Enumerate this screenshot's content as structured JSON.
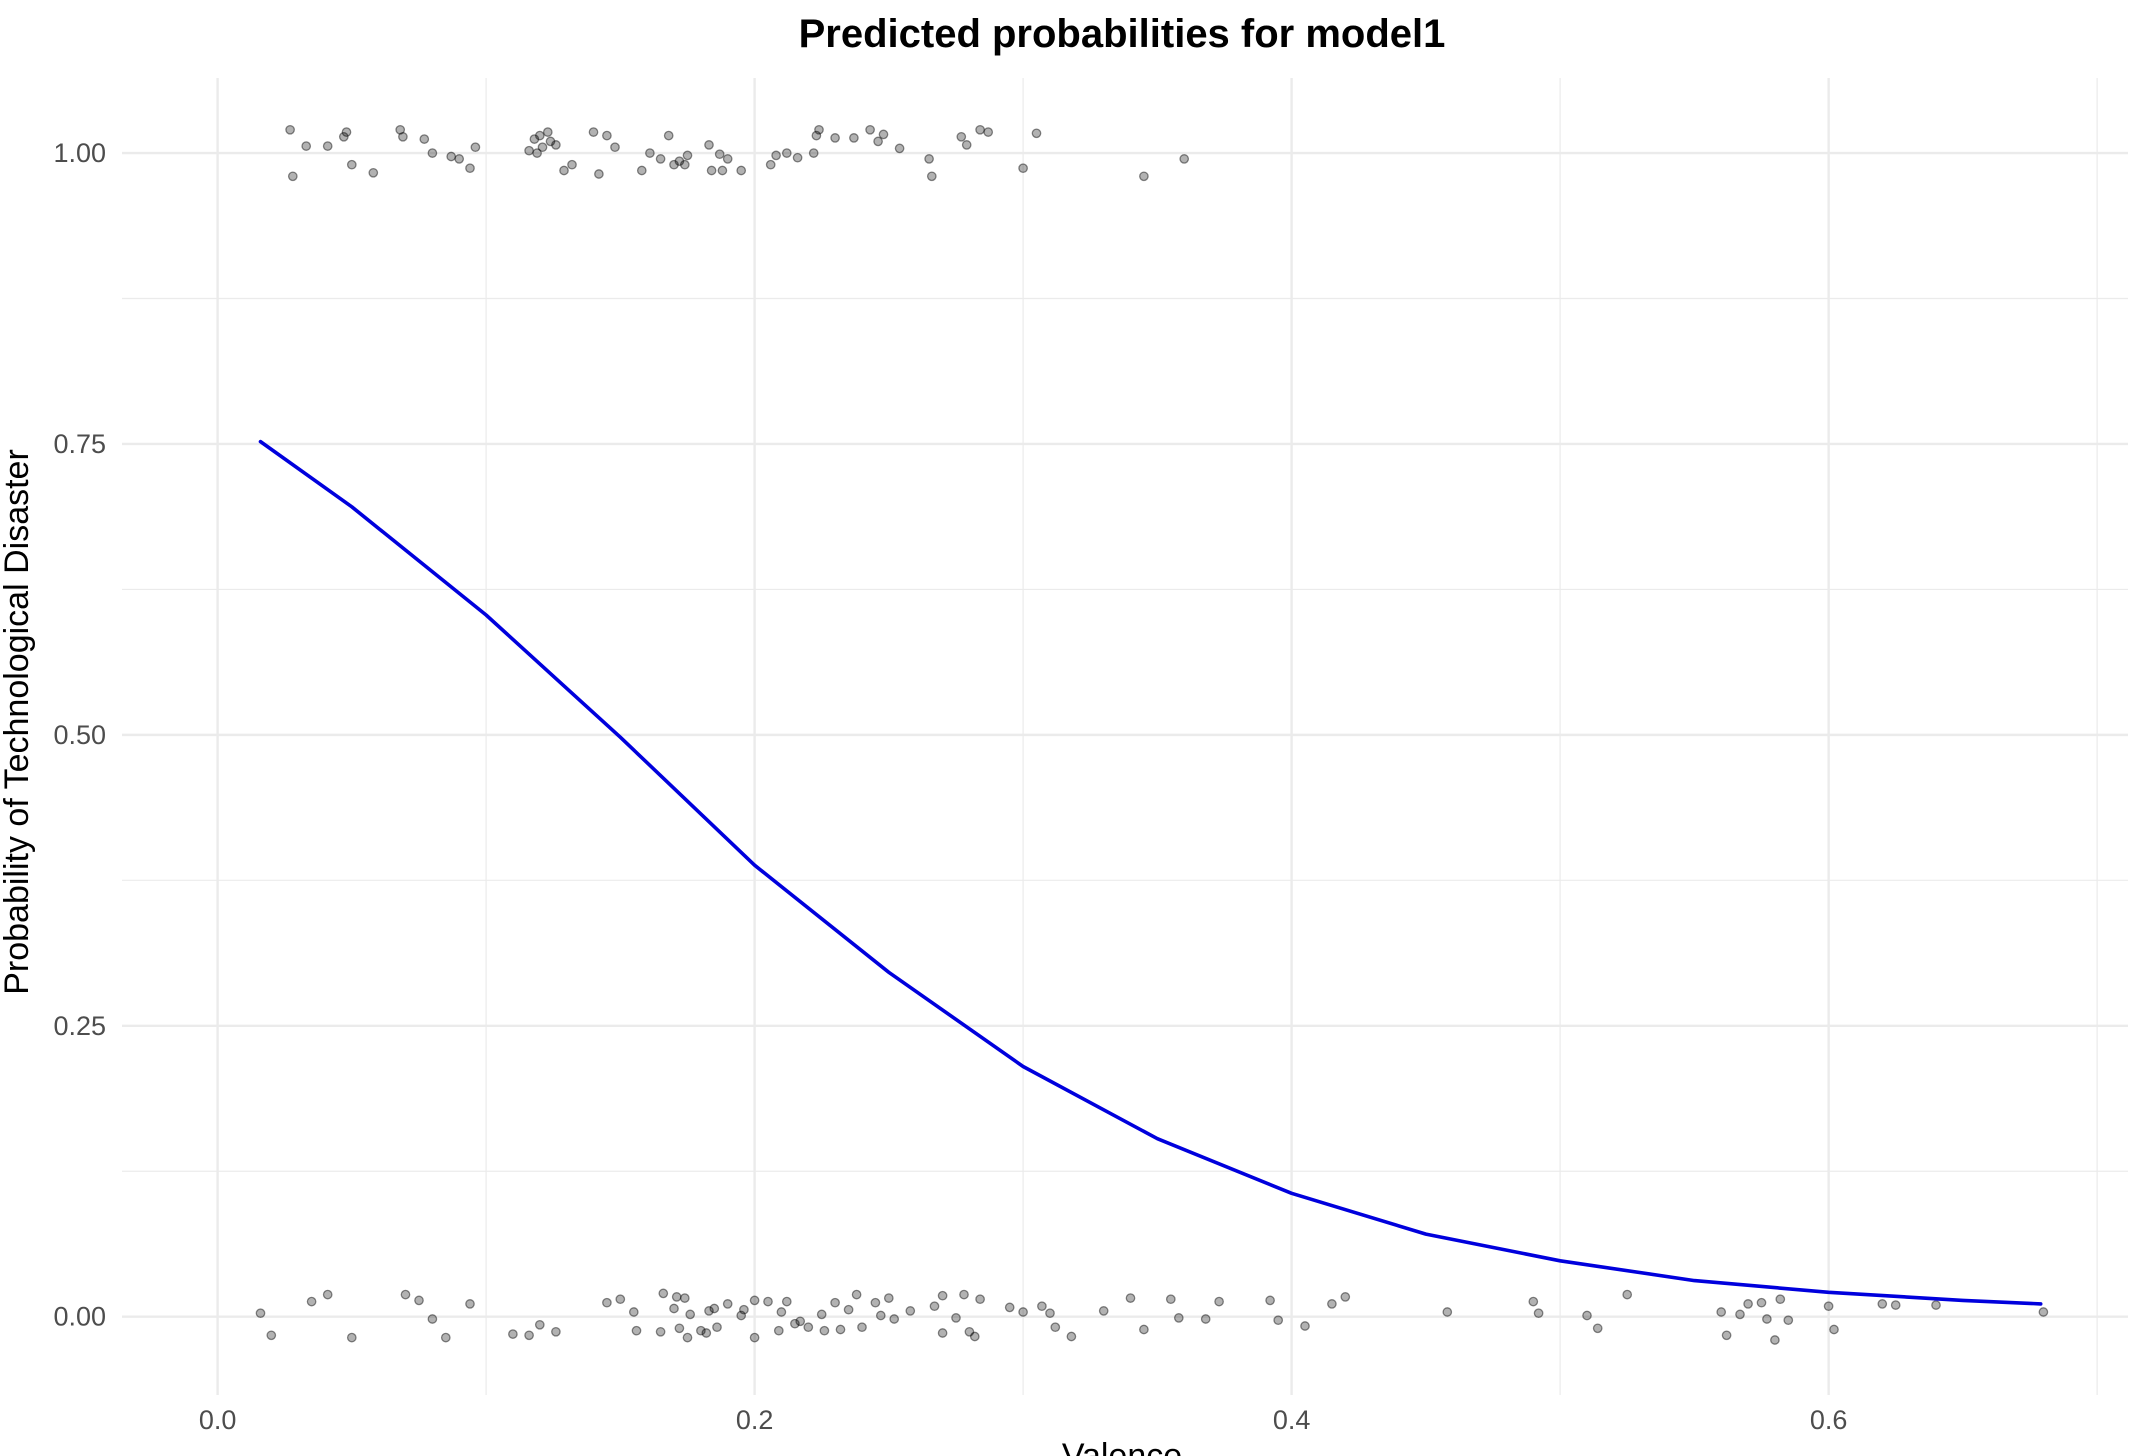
{
  "chart_data": {
    "type": "scatter",
    "title": "Predicted probabilities for model1",
    "xlabel": "Valence",
    "ylabel": "Probability of Technological Disaster",
    "xlim": [
      -0.0356,
      0.7115
    ],
    "ylim": [
      -0.0673,
      1.0645
    ],
    "x_ticks": [
      0.0,
      0.2,
      0.4,
      0.6
    ],
    "x_tick_labels": [
      "0.0",
      "0.2",
      "0.4",
      "0.6"
    ],
    "y_ticks": [
      0.0,
      0.25,
      0.5,
      0.75,
      1.0
    ],
    "y_tick_labels": [
      "0.00",
      "0.25",
      "0.50",
      "0.75",
      "1.00"
    ],
    "x_minor": [
      0.1,
      0.3,
      0.5,
      0.7
    ],
    "y_minor": [
      0.125,
      0.375,
      0.625,
      0.875
    ],
    "grid": true,
    "legend": "none",
    "colors": {
      "curve": "#0000dd",
      "points": "#000000",
      "grid": "#ebebeb"
    },
    "series": [
      {
        "type": "line",
        "x": [
          0.016,
          0.05,
          0.1,
          0.15,
          0.2,
          0.25,
          0.3,
          0.35,
          0.4,
          0.45,
          0.5,
          0.55,
          0.6,
          0.65,
          0.679
        ],
        "y": [
          0.752,
          0.696,
          0.603,
          0.498,
          0.388,
          0.296,
          0.215,
          0.153,
          0.106,
          0.071,
          0.048,
          0.031,
          0.021,
          0.014,
          0.011
        ]
      },
      {
        "type": "scatter",
        "x": [
          0.027,
          0.028,
          0.033,
          0.041,
          0.047,
          0.048,
          0.05,
          0.058,
          0.068,
          0.069,
          0.077,
          0.08,
          0.087,
          0.09,
          0.094,
          0.096,
          0.116,
          0.118,
          0.119,
          0.12,
          0.121,
          0.123,
          0.124,
          0.126,
          0.129,
          0.132,
          0.14,
          0.142,
          0.145,
          0.148,
          0.158,
          0.161,
          0.165,
          0.168,
          0.17,
          0.172,
          0.174,
          0.175,
          0.183,
          0.184,
          0.187,
          0.188,
          0.19,
          0.195,
          0.206,
          0.208,
          0.212,
          0.216,
          0.222,
          0.223,
          0.224,
          0.23,
          0.237,
          0.243,
          0.246,
          0.248,
          0.254,
          0.265,
          0.266,
          0.277,
          0.279,
          0.284,
          0.287,
          0.3,
          0.305,
          0.345,
          0.36
        ],
        "y": [
          1.02,
          0.98,
          1.006,
          1.006,
          1.014,
          1.018,
          0.99,
          0.983,
          1.02,
          1.014,
          1.012,
          1.0,
          0.997,
          0.995,
          0.987,
          1.005,
          1.002,
          1.012,
          1.0,
          1.015,
          1.005,
          1.018,
          1.01,
          1.007,
          0.985,
          0.99,
          1.018,
          0.982,
          1.015,
          1.005,
          0.985,
          1.0,
          0.995,
          1.015,
          0.99,
          0.993,
          0.99,
          0.998,
          1.007,
          0.985,
          0.999,
          0.985,
          0.995,
          0.985,
          0.99,
          0.998,
          1.0,
          0.996,
          1.0,
          1.015,
          1.02,
          1.013,
          1.013,
          1.02,
          1.01,
          1.016,
          1.004,
          0.995,
          0.98,
          1.014,
          1.007,
          1.02,
          1.018,
          0.987,
          1.017,
          0.98,
          0.995
        ]
      },
      {
        "type": "scatter",
        "x": [
          0.016,
          0.02,
          0.035,
          0.041,
          0.05,
          0.07,
          0.075,
          0.08,
          0.085,
          0.094,
          0.11,
          0.116,
          0.12,
          0.126,
          0.145,
          0.15,
          0.155,
          0.156,
          0.165,
          0.166,
          0.17,
          0.171,
          0.172,
          0.174,
          0.175,
          0.176,
          0.18,
          0.182,
          0.183,
          0.185,
          0.186,
          0.19,
          0.195,
          0.196,
          0.2,
          0.2,
          0.205,
          0.209,
          0.21,
          0.212,
          0.215,
          0.217,
          0.22,
          0.225,
          0.226,
          0.23,
          0.232,
          0.235,
          0.238,
          0.24,
          0.245,
          0.247,
          0.25,
          0.252,
          0.258,
          0.267,
          0.27,
          0.27,
          0.275,
          0.278,
          0.28,
          0.282,
          0.284,
          0.295,
          0.3,
          0.307,
          0.31,
          0.312,
          0.318,
          0.33,
          0.34,
          0.345,
          0.355,
          0.358,
          0.368,
          0.373,
          0.392,
          0.395,
          0.405,
          0.415,
          0.42,
          0.458,
          0.49,
          0.492,
          0.51,
          0.514,
          0.525,
          0.56,
          0.562,
          0.567,
          0.57,
          0.575,
          0.577,
          0.58,
          0.582,
          0.585,
          0.6,
          0.602,
          0.62,
          0.625,
          0.64,
          0.68
        ],
        "y": [
          0.003,
          -0.016,
          0.013,
          0.019,
          -0.018,
          0.019,
          0.014,
          -0.002,
          -0.018,
          0.011,
          -0.015,
          -0.016,
          -0.007,
          -0.013,
          0.012,
          0.015,
          0.004,
          -0.012,
          -0.013,
          0.02,
          0.007,
          0.017,
          -0.01,
          0.016,
          -0.018,
          0.002,
          -0.012,
          -0.014,
          0.005,
          0.007,
          -0.009,
          0.011,
          0.001,
          0.006,
          -0.018,
          0.014,
          0.013,
          -0.012,
          0.004,
          0.013,
          -0.006,
          -0.004,
          -0.009,
          0.002,
          -0.012,
          0.012,
          -0.011,
          0.006,
          0.019,
          -0.009,
          0.012,
          0.001,
          0.016,
          -0.002,
          0.005,
          0.009,
          0.018,
          -0.014,
          -0.001,
          0.019,
          -0.013,
          -0.017,
          0.015,
          0.008,
          0.004,
          0.009,
          0.003,
          -0.009,
          -0.017,
          0.005,
          0.016,
          -0.011,
          0.015,
          -0.001,
          -0.002,
          0.013,
          0.014,
          -0.003,
          -0.008,
          0.011,
          0.017,
          0.004,
          0.013,
          0.003,
          0.001,
          -0.01,
          0.019,
          0.004,
          -0.016,
          0.002,
          0.011,
          0.012,
          -0.002,
          -0.02,
          0.015,
          -0.003,
          0.009,
          -0.011,
          0.011,
          0.01,
          0.01,
          0.004
        ]
      }
    ]
  }
}
